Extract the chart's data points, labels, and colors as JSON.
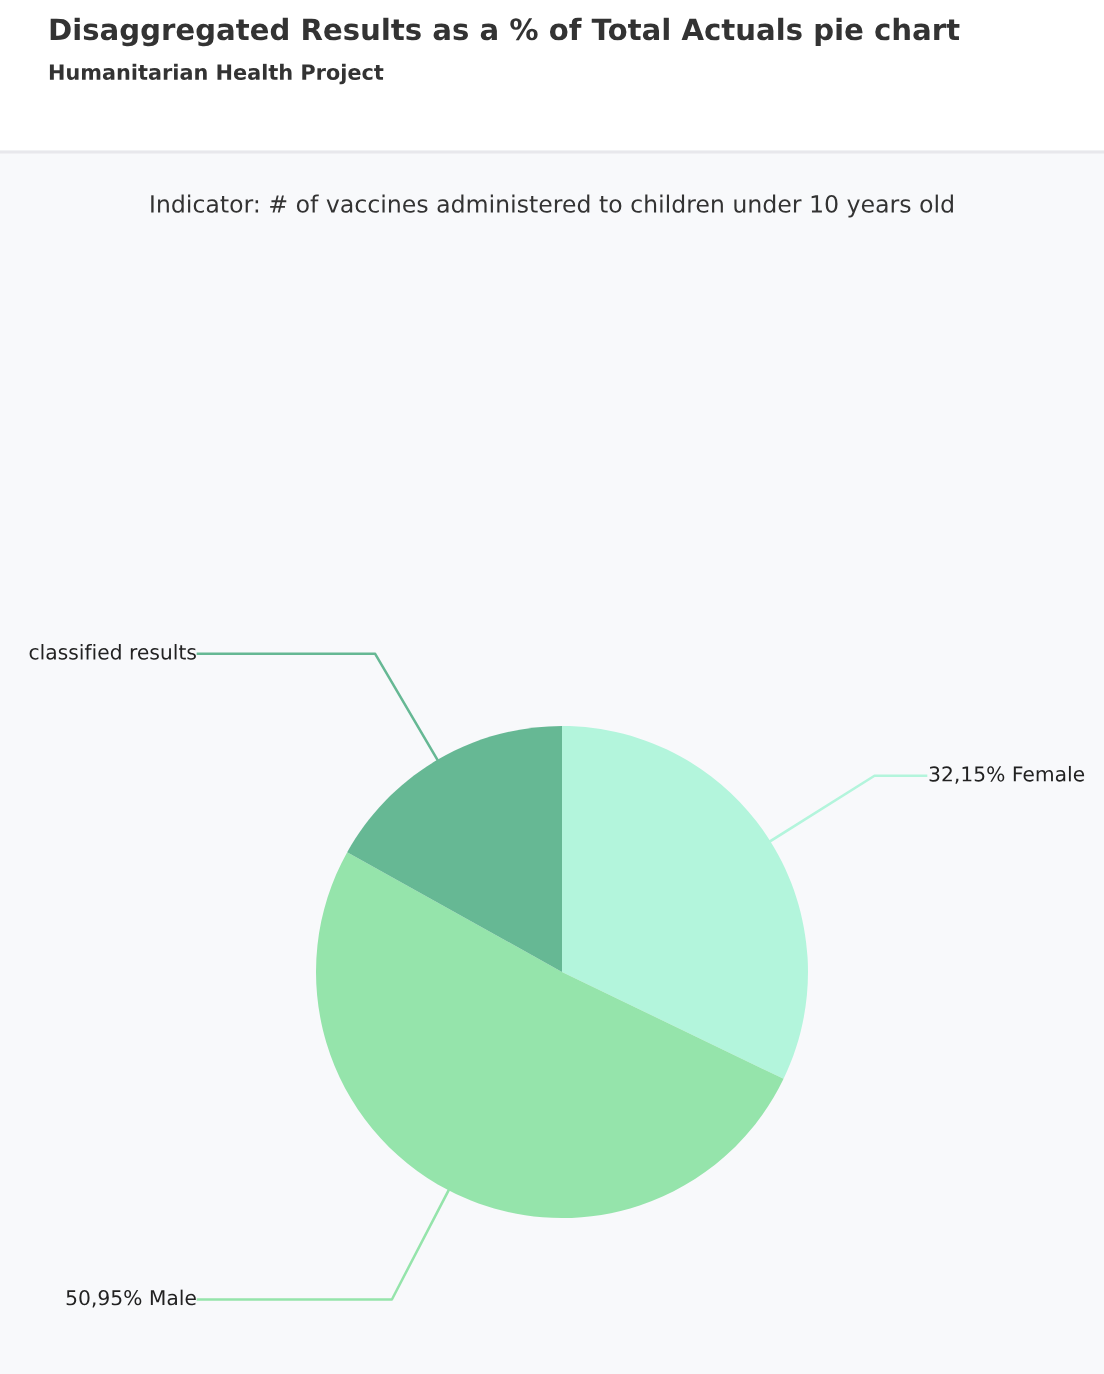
{
  "chart_data": {
    "type": "pie",
    "title": "Disaggregated Results as a % of Total Actuals pie chart",
    "subtitle": "Humanitarian Health Project",
    "annotations": [
      "Indicator: # of vaccines administered to children under 10 years old"
    ],
    "categories": [
      "Female",
      "Male",
      "classified results"
    ],
    "values": [
      32.15,
      50.95,
      16.9
    ],
    "value_labels": [
      "32,15%",
      "50,95%",
      null
    ],
    "colors": [
      "#b3f5dc",
      "#95e4ab",
      "#66b894"
    ]
  }
}
